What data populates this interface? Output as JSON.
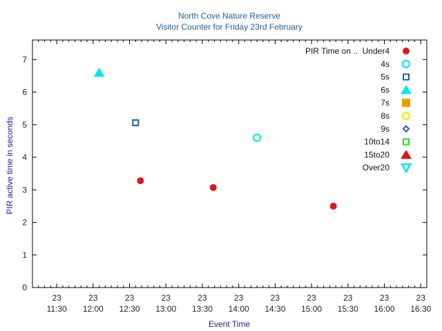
{
  "chart_data": {
    "type": "scatter",
    "title": "North Cove Nature Reserve",
    "subtitle": "Visitor Counter for Friday 23rd February",
    "xlabel": "Event Time",
    "ylabel": "PIR active time in seconds",
    "legend_title": "PIR Time on ..",
    "legend_position": "top-right",
    "grid": false,
    "xlim": [
      "11:10",
      "16:35"
    ],
    "ylim": [
      0,
      7.6
    ],
    "yticks": [
      "0",
      "1",
      "2",
      "3",
      "4",
      "5",
      "6",
      "7"
    ],
    "xticks": [
      {
        "day": "23",
        "time": "11:30"
      },
      {
        "day": "23",
        "time": "12:00"
      },
      {
        "day": "23",
        "time": "12:30"
      },
      {
        "day": "23",
        "time": "13:00"
      },
      {
        "day": "23",
        "time": "13:30"
      },
      {
        "day": "23",
        "time": "14:00"
      },
      {
        "day": "23",
        "time": "14:30"
      },
      {
        "day": "23",
        "time": "15:00"
      },
      {
        "day": "23",
        "time": "15:30"
      },
      {
        "day": "23",
        "time": "16:00"
      },
      {
        "day": "23",
        "time": "16:30"
      }
    ],
    "series": [
      {
        "name": "Under4",
        "marker": "circle-filled",
        "color": "#d7191c",
        "points": [
          {
            "x": "12:39",
            "y": 3.28
          },
          {
            "x": "13:39",
            "y": 3.07
          },
          {
            "x": "15:18",
            "y": 2.5
          }
        ]
      },
      {
        "name": "4s",
        "marker": "circle-open",
        "color": "#22e5f0",
        "points": [
          {
            "x": "14:15",
            "y": 4.6
          }
        ]
      },
      {
        "name": "5s",
        "marker": "square-open",
        "color": "#1f5fa0",
        "points": [
          {
            "x": "12:35",
            "y": 5.06
          }
        ]
      },
      {
        "name": "6s",
        "marker": "triangle-filled",
        "color": "#00e5ee",
        "points": [
          {
            "x": "12:05",
            "y": 6.6
          }
        ]
      },
      {
        "name": "7s",
        "marker": "square-filled",
        "color": "#e8a000",
        "points": []
      },
      {
        "name": "8s",
        "marker": "circle-open",
        "color": "#f5f000",
        "points": []
      },
      {
        "name": "9s",
        "marker": "diamond-open",
        "color": "#1f5fa0",
        "points": []
      },
      {
        "name": "10to14",
        "marker": "square-open",
        "color": "#22dd22",
        "points": []
      },
      {
        "name": "15to20",
        "marker": "triangle-filled",
        "color": "#e01010",
        "points": []
      },
      {
        "name": "Over20",
        "marker": "triangle-down-open",
        "color": "#00e5ee",
        "points": []
      }
    ]
  }
}
